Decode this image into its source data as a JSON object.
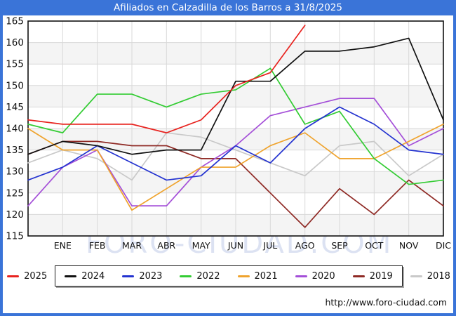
{
  "title": "Afiliados en Calzadilla de los Barros a 31/8/2025",
  "watermark": "FORO-CIUDAD.COM",
  "footer": {
    "url": "http://www.foro-ciudad.com"
  },
  "colors": {
    "accent_blue": "#3a74d8",
    "grid": "#d9d9d9",
    "band": "#f4f4f4",
    "plot_border": "#111111"
  },
  "chart_data": {
    "type": "line",
    "title": "Afiliados en Calzadilla de los Barros a 31/8/2025",
    "x_labels": [
      "ENE",
      "FEB",
      "MAR",
      "ABR",
      "MAY",
      "JUN",
      "JUL",
      "AGO",
      "SEP",
      "OCT",
      "NOV",
      "DIC"
    ],
    "y_ticks": [
      165,
      160,
      155,
      150,
      145,
      140,
      135,
      130,
      125,
      120,
      115
    ],
    "ylim": [
      115,
      165
    ],
    "grid": true,
    "legend_position": "bottom",
    "note": "First value of every series sits on the y-axis (December of previous year); months ENE-DIC follow. 2025 ends in AGO.",
    "series": [
      {
        "name": "2025",
        "color": "#e8231f",
        "values": [
          142,
          141,
          141,
          141,
          139,
          142,
          150,
          153,
          164
        ]
      },
      {
        "name": "2024",
        "color": "#111111",
        "values": [
          134,
          137,
          136,
          134,
          135,
          135,
          151,
          151,
          158,
          158,
          159,
          161,
          142
        ]
      },
      {
        "name": "2023",
        "color": "#2433d0",
        "values": [
          128,
          131,
          136,
          132,
          128,
          129,
          136,
          132,
          140,
          145,
          141,
          135,
          134
        ]
      },
      {
        "name": "2022",
        "color": "#33cc33",
        "values": [
          141,
          139,
          148,
          148,
          145,
          148,
          149,
          154,
          141,
          144,
          133,
          127,
          128
        ]
      },
      {
        "name": "2021",
        "color": "#efa32d",
        "values": [
          140,
          135,
          135,
          121,
          126,
          131,
          131,
          136,
          139,
          133,
          133,
          137,
          141
        ]
      },
      {
        "name": "2020",
        "color": "#a44fd8",
        "values": [
          122,
          131,
          135,
          122,
          122,
          131,
          136,
          143,
          145,
          147,
          147,
          136,
          140
        ]
      },
      {
        "name": "2019",
        "color": "#8f2a25",
        "values": [
          134,
          137,
          137,
          136,
          136,
          133,
          133,
          125,
          117,
          126,
          120,
          128,
          122
        ]
      },
      {
        "name": "2018",
        "color": "#c9c9c9",
        "values": [
          132,
          135,
          133,
          128,
          139,
          138,
          135,
          132,
          129,
          136,
          137,
          129,
          134
        ]
      }
    ]
  }
}
